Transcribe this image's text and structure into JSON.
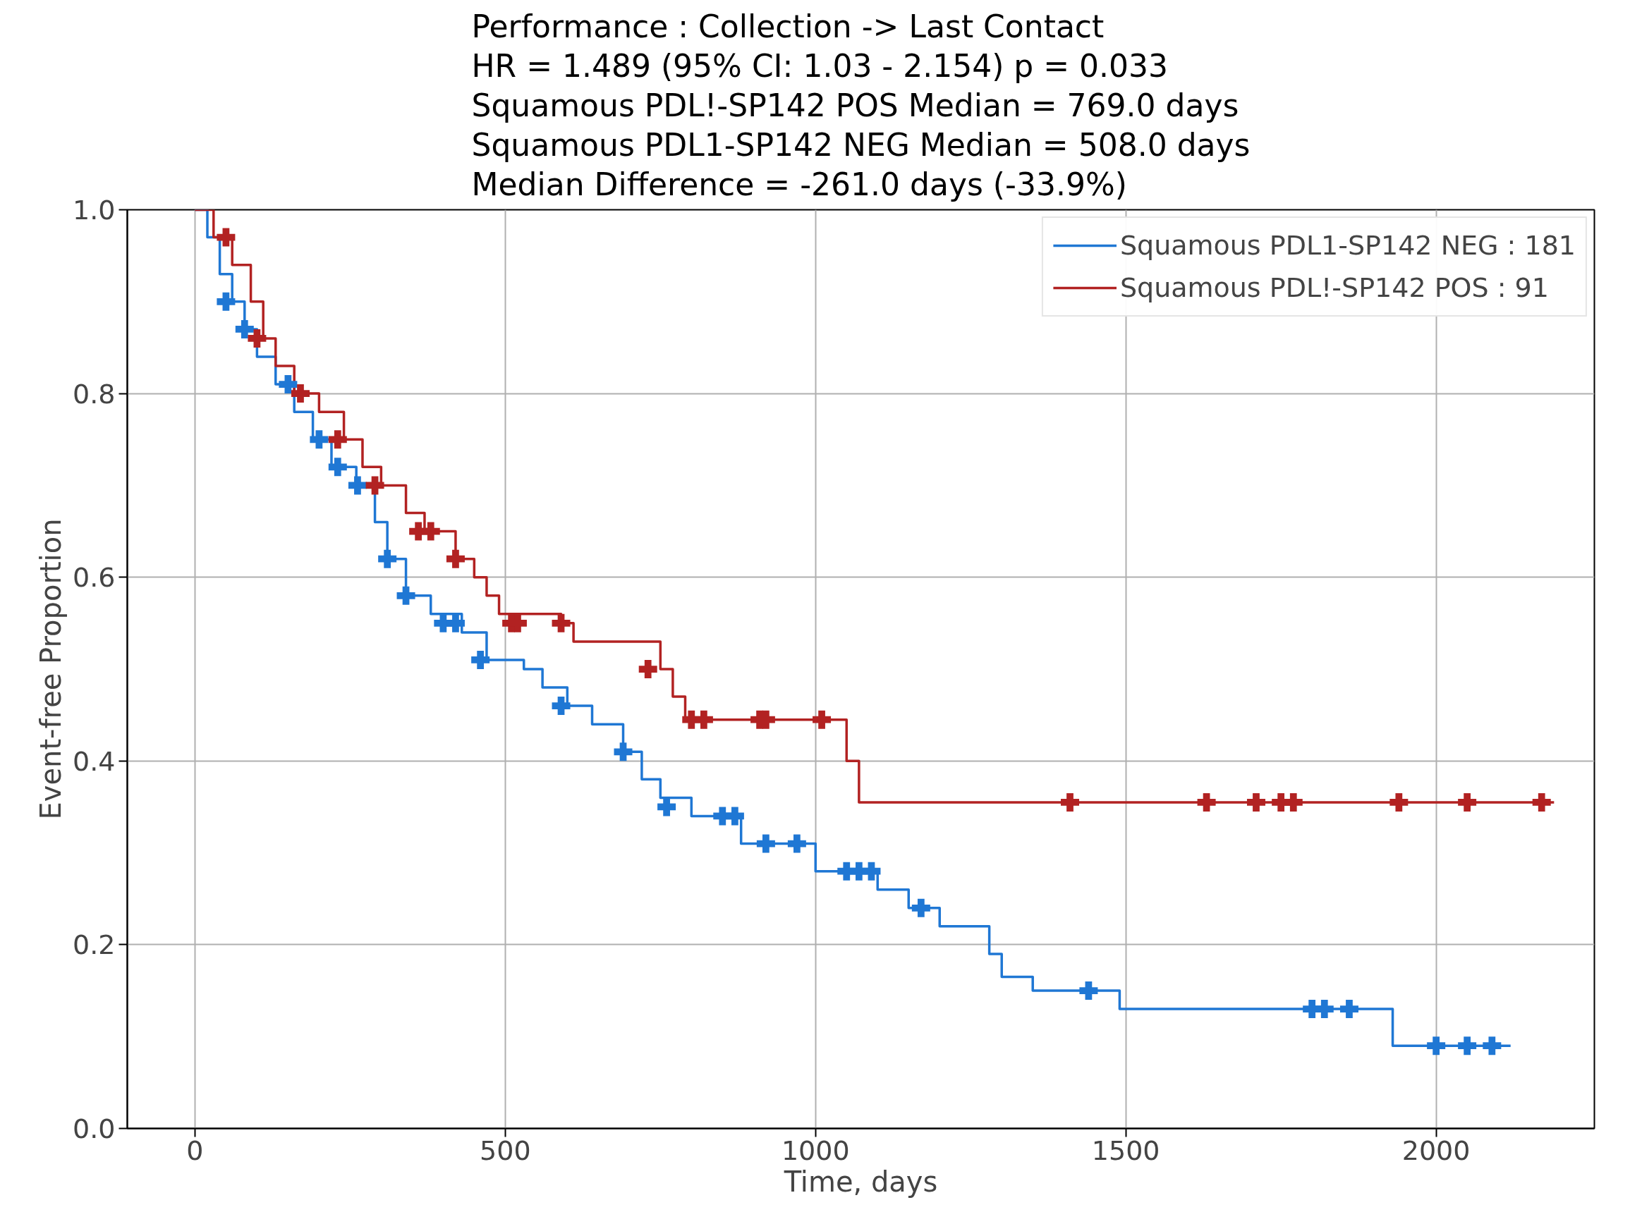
{
  "chart_data": {
    "type": "step",
    "title": "Performance : Collection -> Last Contact\nHR = 1.489 (95% CI: 1.03 - 2.154) p = 0.033\nSquamous PDL!-SP142 POS Median = 769.0 days\nSquamous PDL1-SP142 NEG Median = 508.0 days\nMedian Difference = -261.0 days (-33.9%)",
    "xlabel": "Time, days",
    "ylabel": "Event-free Proportion",
    "xlim": [
      -109,
      2255
    ],
    "ylim": [
      0,
      1
    ],
    "xticks": [
      0,
      500,
      1000,
      1500,
      2000
    ],
    "yticks": [
      {
        "value": 0,
        "label": "0.0"
      },
      0.2,
      0.4,
      0.6,
      0.8,
      {
        "value": 1,
        "label": "1.0"
      }
    ],
    "grid": true,
    "legend": "top right",
    "series": [
      {
        "name": "Squamous PDL1-SP142 NEG : 181",
        "color": "#1f77d4",
        "x": [
          0,
          20,
          40,
          60,
          80,
          100,
          130,
          160,
          190,
          220,
          260,
          290,
          310,
          340,
          380,
          430,
          470,
          530,
          560,
          600,
          640,
          690,
          720,
          750,
          800,
          880,
          1000,
          1100,
          1150,
          1200,
          1280,
          1300,
          1350,
          1490,
          1930,
          2120
        ],
        "values": [
          1.0,
          0.97,
          0.93,
          0.9,
          0.87,
          0.84,
          0.81,
          0.78,
          0.75,
          0.72,
          0.7,
          0.66,
          0.62,
          0.58,
          0.56,
          0.54,
          0.51,
          0.5,
          0.48,
          0.46,
          0.44,
          0.41,
          0.38,
          0.36,
          0.34,
          0.31,
          0.28,
          0.26,
          0.24,
          0.22,
          0.19,
          0.165,
          0.15,
          0.13,
          0.09,
          0.09
        ]
      },
      {
        "name": "Squamous PDL!-SP142 POS : 91",
        "color": "#b22222",
        "x": [
          0,
          30,
          60,
          90,
          110,
          130,
          160,
          200,
          240,
          270,
          300,
          340,
          370,
          420,
          450,
          470,
          490,
          590,
          610,
          750,
          770,
          790,
          1050,
          1070,
          2190
        ],
        "values": [
          1.0,
          0.97,
          0.94,
          0.9,
          0.86,
          0.83,
          0.8,
          0.78,
          0.75,
          0.72,
          0.7,
          0.67,
          0.65,
          0.62,
          0.6,
          0.58,
          0.56,
          0.55,
          0.53,
          0.5,
          0.47,
          0.445,
          0.4,
          0.355,
          0.355
        ]
      },
      {
        "color": "#1f77d4",
        "type": "scatter",
        "marker": "cross",
        "x": [
          50,
          80,
          150,
          200,
          230,
          262,
          310,
          340,
          400,
          420,
          460,
          590,
          690,
          760,
          850,
          870,
          920,
          970,
          1050,
          1070,
          1090,
          1170,
          1440,
          1800,
          1820,
          1860,
          2000,
          2050,
          2090
        ],
        "values": [
          0.9,
          0.87,
          0.81,
          0.75,
          0.72,
          0.7,
          0.62,
          0.58,
          0.55,
          0.55,
          0.51,
          0.46,
          0.41,
          0.35,
          0.34,
          0.34,
          0.31,
          0.31,
          0.28,
          0.28,
          0.28,
          0.24,
          0.15,
          0.13,
          0.13,
          0.13,
          0.09,
          0.09,
          0.09
        ]
      },
      {
        "color": "#b22222",
        "type": "scatter",
        "marker": "cross",
        "x": [
          50,
          100,
          170,
          230,
          290,
          360,
          380,
          420,
          510,
          520,
          590,
          730,
          800,
          820,
          910,
          920,
          1010,
          1410,
          1630,
          1710,
          1750,
          1770,
          1940,
          2050,
          2170
        ],
        "values": [
          0.97,
          0.86,
          0.8,
          0.75,
          0.7,
          0.65,
          0.65,
          0.62,
          0.55,
          0.55,
          0.55,
          0.5,
          0.445,
          0.445,
          0.445,
          0.445,
          0.445,
          0.355,
          0.355,
          0.355,
          0.355,
          0.355,
          0.355,
          0.355,
          0.355
        ]
      }
    ]
  }
}
